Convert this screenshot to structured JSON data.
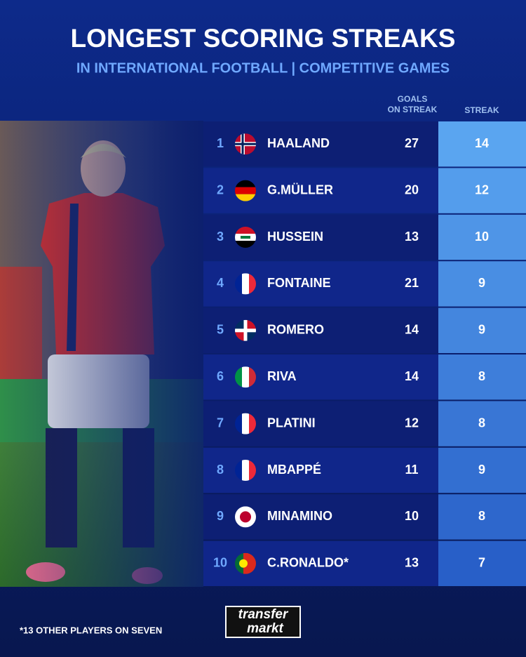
{
  "header": {
    "title": "LONGEST SCORING STREAKS",
    "subtitle": "IN INTERNATIONAL FOOTBALL | COMPETITIVE GAMES"
  },
  "table": {
    "columns": [
      "GOALS ON STREAK",
      "STREAK"
    ],
    "rows": [
      {
        "rank": 1,
        "name": "HAALAND",
        "goals": 27,
        "streak": 14
      },
      {
        "rank": 2,
        "name": "G.MÜLLER",
        "goals": 20,
        "streak": 12
      },
      {
        "rank": 3,
        "name": "HUSSEIN",
        "goals": 13,
        "streak": 10
      },
      {
        "rank": 4,
        "name": "FONTAINE",
        "goals": 21,
        "streak": 9
      },
      {
        "rank": 5,
        "name": "ROMERO",
        "goals": 14,
        "streak": 9
      },
      {
        "rank": 6,
        "name": "RIVA",
        "goals": 14,
        "streak": 8
      },
      {
        "rank": 7,
        "name": "PLATINI",
        "goals": 12,
        "streak": 8
      },
      {
        "rank": 8,
        "name": "MBAPPÉ",
        "goals": 11,
        "streak": 9
      },
      {
        "rank": 9,
        "name": "MINAMINO",
        "goals": 10,
        "streak": 8
      },
      {
        "rank": 10,
        "name": "C.RONALDO*",
        "goals": 13,
        "streak": 7
      }
    ]
  },
  "footer": {
    "note": "*13 OTHER PLAYERS ON SEVEN",
    "logo": [
      "transfer",
      "markt"
    ]
  }
}
